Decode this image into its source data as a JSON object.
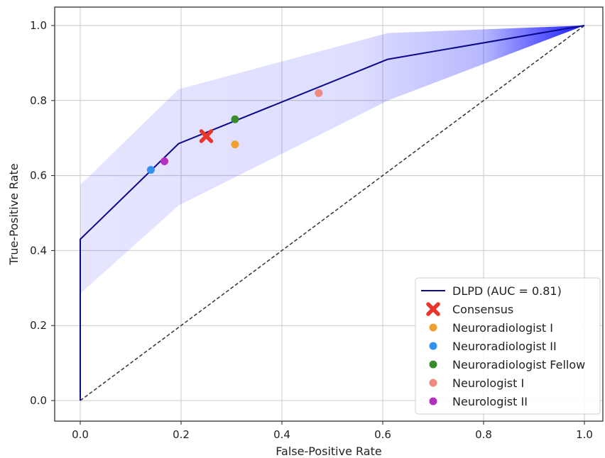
{
  "chart_data": {
    "type": "line",
    "xlabel": "False-Positive Rate",
    "ylabel": "True-Positive Rate",
    "xlim": [
      -0.05,
      1.04
    ],
    "ylim": [
      -0.05,
      1.05
    ],
    "x_ticks": [
      "0.0",
      "0.2",
      "0.4",
      "0.6",
      "0.8",
      "1.0"
    ],
    "y_ticks": [
      "0.0",
      "0.2",
      "0.4",
      "0.6",
      "0.8",
      "1.0"
    ],
    "grid": true,
    "legend_position": "lower-right",
    "roc_curve": {
      "name": "DLPD (AUC = 0.81)",
      "color": "#0a0a8a",
      "points": [
        [
          0.0,
          0.0
        ],
        [
          0.0,
          0.43
        ],
        [
          0.195,
          0.685
        ],
        [
          0.61,
          0.91
        ],
        [
          1.0,
          1.0
        ]
      ]
    },
    "confidence_band": {
      "color": "#0000ff",
      "upper": [
        [
          0.0,
          0.575
        ],
        [
          0.195,
          0.83
        ],
        [
          0.61,
          0.98
        ],
        [
          1.0,
          1.0
        ]
      ],
      "lower": [
        [
          1.0,
          1.0
        ],
        [
          0.61,
          0.8
        ],
        [
          0.195,
          0.52
        ],
        [
          0.0,
          0.285
        ]
      ]
    },
    "diagonal": {
      "style": "dashed",
      "color": "#333333",
      "points": [
        [
          0.0,
          0.0
        ],
        [
          1.0,
          1.0
        ]
      ]
    },
    "readers": [
      {
        "name": "Consensus",
        "x": 0.25,
        "y": 0.705,
        "color": "#e8362a",
        "marker": "x"
      },
      {
        "name": "Neuroradiologist I",
        "x": 0.307,
        "y": 0.683,
        "color": "#f0a030",
        "marker": "circle"
      },
      {
        "name": "Neuroradiologist II",
        "x": 0.14,
        "y": 0.615,
        "color": "#3390ee",
        "marker": "circle"
      },
      {
        "name": "Neuroradiologist Fellow",
        "x": 0.307,
        "y": 0.75,
        "color": "#3a8a2e",
        "marker": "circle"
      },
      {
        "name": "Neurologist I",
        "x": 0.473,
        "y": 0.82,
        "color": "#ef8a80",
        "marker": "circle"
      },
      {
        "name": "Neurologist II",
        "x": 0.167,
        "y": 0.638,
        "color": "#b42ec0",
        "marker": "circle"
      }
    ]
  }
}
